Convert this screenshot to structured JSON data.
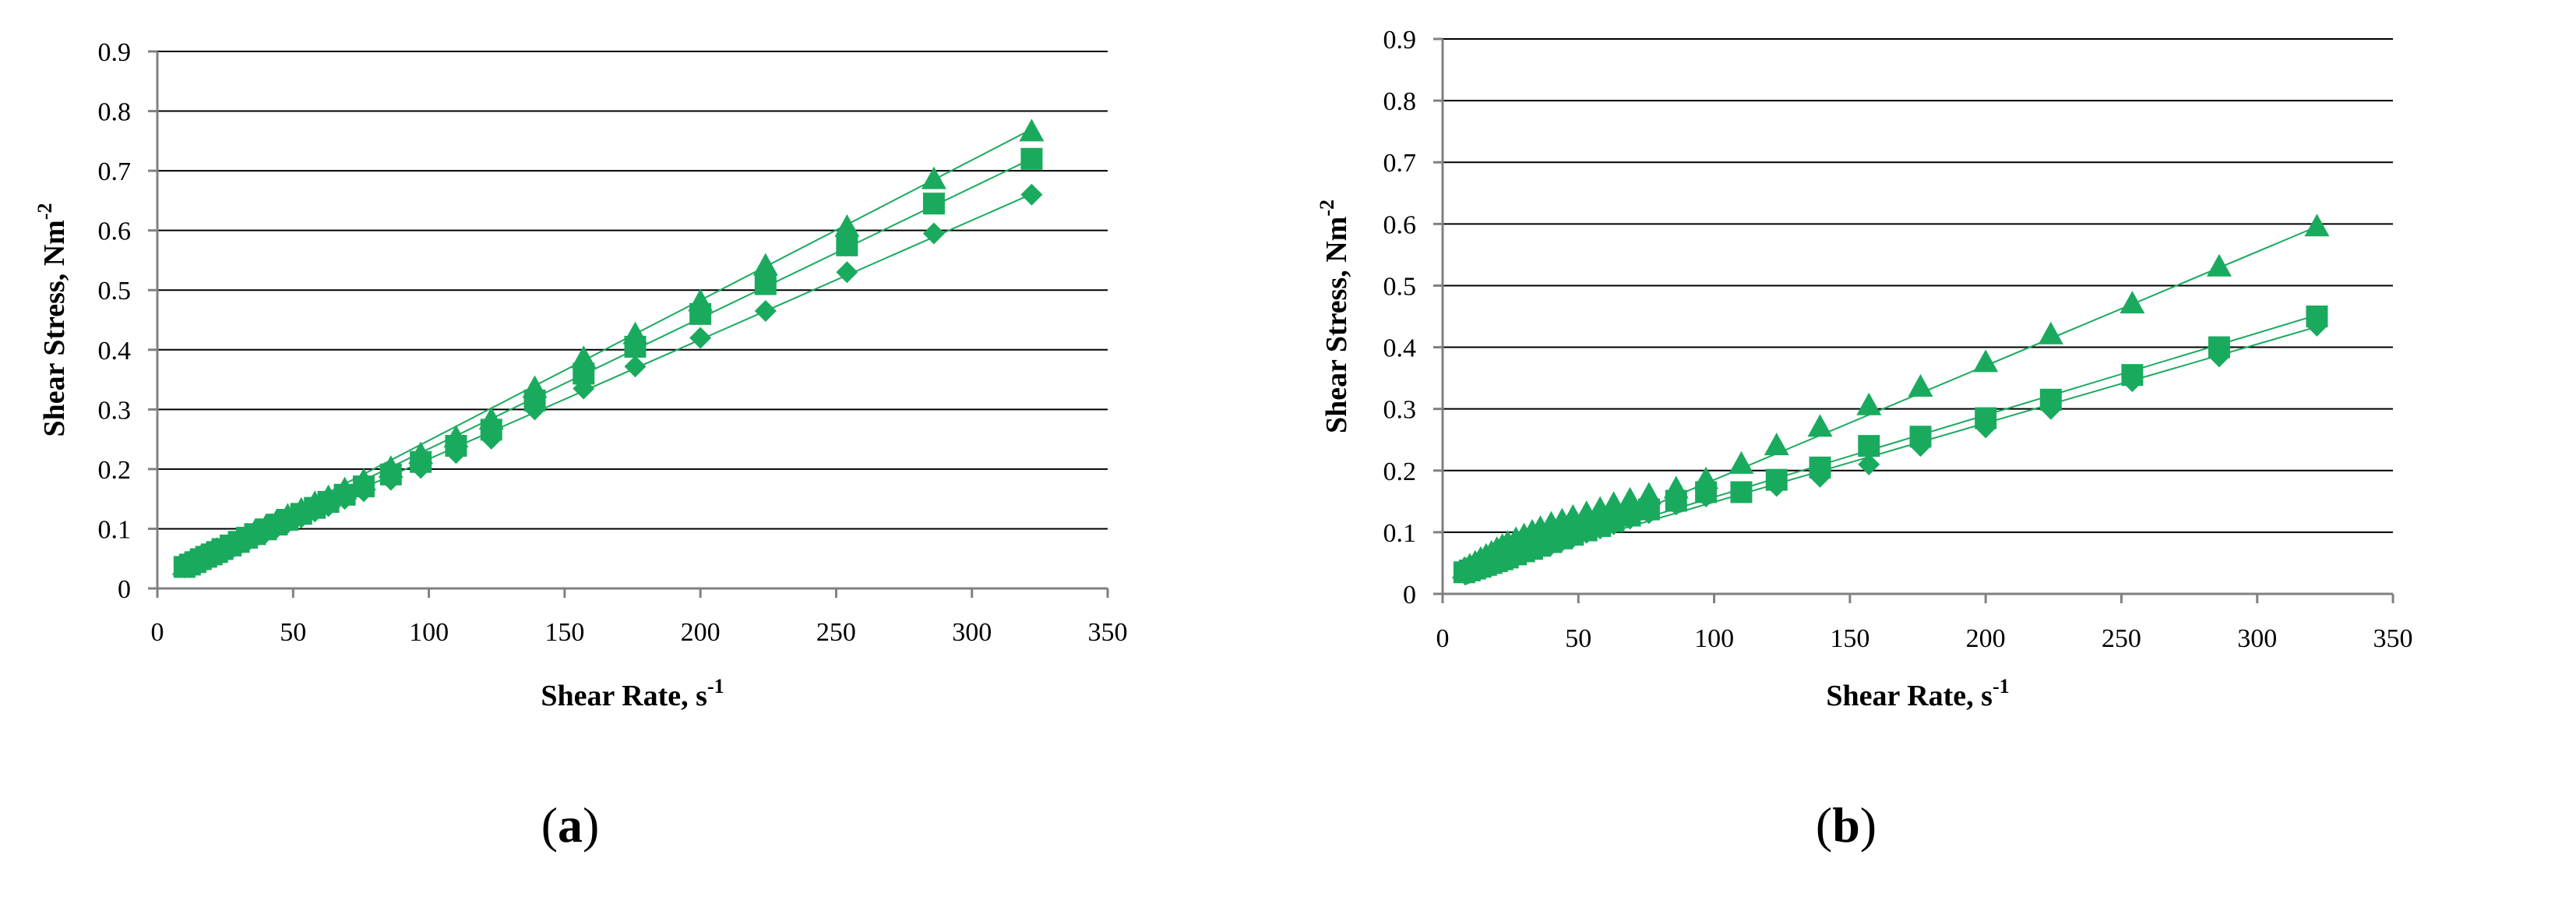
{
  "figure": {
    "panel_labels": [
      {
        "open": "(",
        "letter": "a",
        "close": ")"
      },
      {
        "open": "(",
        "letter": "b",
        "close": ")"
      }
    ]
  },
  "colors": {
    "marker": "#1aaa5e",
    "grid": "#000000",
    "axis": "#808080"
  },
  "chart_data": [
    {
      "type": "scatter",
      "panel": "a",
      "title": "",
      "xlabel": "Shear Rate, s",
      "xlabel_sup": "-1",
      "ylabel": "Shear Stress, Nm",
      "ylabel_sup": "-2",
      "xlim": [
        0,
        350
      ],
      "ylim": [
        0,
        0.9
      ],
      "x_ticks": [
        "0",
        "50",
        "100",
        "150",
        "200",
        "250",
        "300",
        "350"
      ],
      "y_ticks": [
        "0",
        "0.1",
        "0.2",
        "0.3",
        "0.4",
        "0.5",
        "0.6",
        "0.7",
        "0.8",
        "0.9"
      ],
      "grid": "horizontal",
      "legend": "none",
      "x": [
        10,
        12,
        14,
        16,
        18,
        20,
        22,
        24,
        27,
        30,
        33,
        36,
        40,
        44,
        48,
        53,
        58,
        63,
        69,
        76,
        86,
        97,
        110,
        123,
        139,
        157,
        176,
        200,
        224,
        254,
        286,
        322
      ],
      "series": [
        {
          "marker": "diamond",
          "values": [
            0.035,
            0.039,
            0.043,
            0.047,
            0.051,
            0.055,
            0.059,
            0.063,
            0.069,
            0.075,
            0.081,
            0.087,
            0.094,
            0.102,
            0.11,
            0.119,
            0.129,
            0.138,
            0.15,
            0.163,
            0.182,
            0.202,
            0.227,
            0.251,
            0.3,
            0.335,
            0.372,
            0.42,
            0.465,
            0.53,
            0.595,
            0.66
          ],
          "fit": [
            0.017,
            0.002
          ]
        },
        {
          "marker": "square",
          "values": [
            0.036,
            0.04,
            0.044,
            0.049,
            0.053,
            0.057,
            0.061,
            0.066,
            0.072,
            0.078,
            0.085,
            0.091,
            0.099,
            0.107,
            0.115,
            0.125,
            0.135,
            0.145,
            0.157,
            0.171,
            0.191,
            0.212,
            0.239,
            0.266,
            0.315,
            0.36,
            0.405,
            0.46,
            0.51,
            0.575,
            0.645,
            0.72
          ],
          "fit": [
            0.015,
            0.00219
          ]
        },
        {
          "marker": "triangle",
          "values": [
            0.038,
            0.042,
            0.046,
            0.051,
            0.055,
            0.059,
            0.064,
            0.068,
            0.075,
            0.081,
            0.088,
            0.095,
            0.103,
            0.112,
            0.121,
            0.131,
            0.142,
            0.152,
            0.165,
            0.18,
            0.201,
            0.224,
            0.252,
            0.282,
            0.335,
            0.385,
            0.425,
            0.48,
            0.54,
            0.605,
            0.685,
            0.765
          ],
          "fit": [
            0.013,
            0.00235
          ]
        }
      ]
    },
    {
      "type": "scatter",
      "panel": "b",
      "title": "",
      "xlabel": "Shear Rate, s",
      "xlabel_sup": "-1",
      "ylabel": "Shear Stress, Nm",
      "ylabel_sup": "-2",
      "xlim": [
        0,
        350
      ],
      "ylim": [
        0,
        0.9
      ],
      "x_ticks": [
        "0",
        "50",
        "100",
        "150",
        "200",
        "250",
        "300",
        "350"
      ],
      "y_ticks": [
        "0",
        "0.1",
        "0.2",
        "0.3",
        "0.4",
        "0.5",
        "0.6",
        "0.7",
        "0.8",
        "0.9"
      ],
      "grid": "horizontal",
      "legend": "none",
      "x": [
        8,
        10,
        12,
        14,
        16,
        18,
        20,
        22,
        24,
        27,
        30,
        33,
        36,
        40,
        44,
        48,
        53,
        58,
        63,
        69,
        76,
        86,
        97,
        110,
        123,
        139,
        157,
        176,
        200,
        224,
        254,
        286,
        322
      ],
      "series": [
        {
          "marker": "diamond",
          "values": [
            0.033,
            0.036,
            0.039,
            0.042,
            0.045,
            0.048,
            0.051,
            0.054,
            0.057,
            0.061,
            0.066,
            0.07,
            0.075,
            0.08,
            0.086,
            0.092,
            0.099,
            0.106,
            0.113,
            0.122,
            0.131,
            0.145,
            0.158,
            0.165,
            0.175,
            0.19,
            0.21,
            0.24,
            0.27,
            0.3,
            0.345,
            0.385,
            0.435
          ],
          "fit": [
            0.021,
            0.00128
          ]
        },
        {
          "marker": "square",
          "values": [
            0.035,
            0.038,
            0.041,
            0.044,
            0.047,
            0.05,
            0.053,
            0.056,
            0.059,
            0.064,
            0.069,
            0.073,
            0.078,
            0.084,
            0.09,
            0.096,
            0.103,
            0.11,
            0.118,
            0.127,
            0.137,
            0.151,
            0.165,
            0.165,
            0.185,
            0.205,
            0.24,
            0.255,
            0.285,
            0.315,
            0.355,
            0.4,
            0.45
          ],
          "fit": [
            0.024,
            0.00133
          ]
        },
        {
          "marker": "triangle",
          "values": [
            0.04,
            0.045,
            0.05,
            0.056,
            0.061,
            0.066,
            0.072,
            0.077,
            0.082,
            0.088,
            0.094,
            0.1,
            0.106,
            0.113,
            0.118,
            0.124,
            0.13,
            0.137,
            0.145,
            0.152,
            0.16,
            0.17,
            0.185,
            0.21,
            0.24,
            0.27,
            0.305,
            0.335,
            0.375,
            0.42,
            0.47,
            0.53,
            0.595
          ],
          "fit": [
            0.0,
            0.00185
          ]
        }
      ]
    }
  ]
}
